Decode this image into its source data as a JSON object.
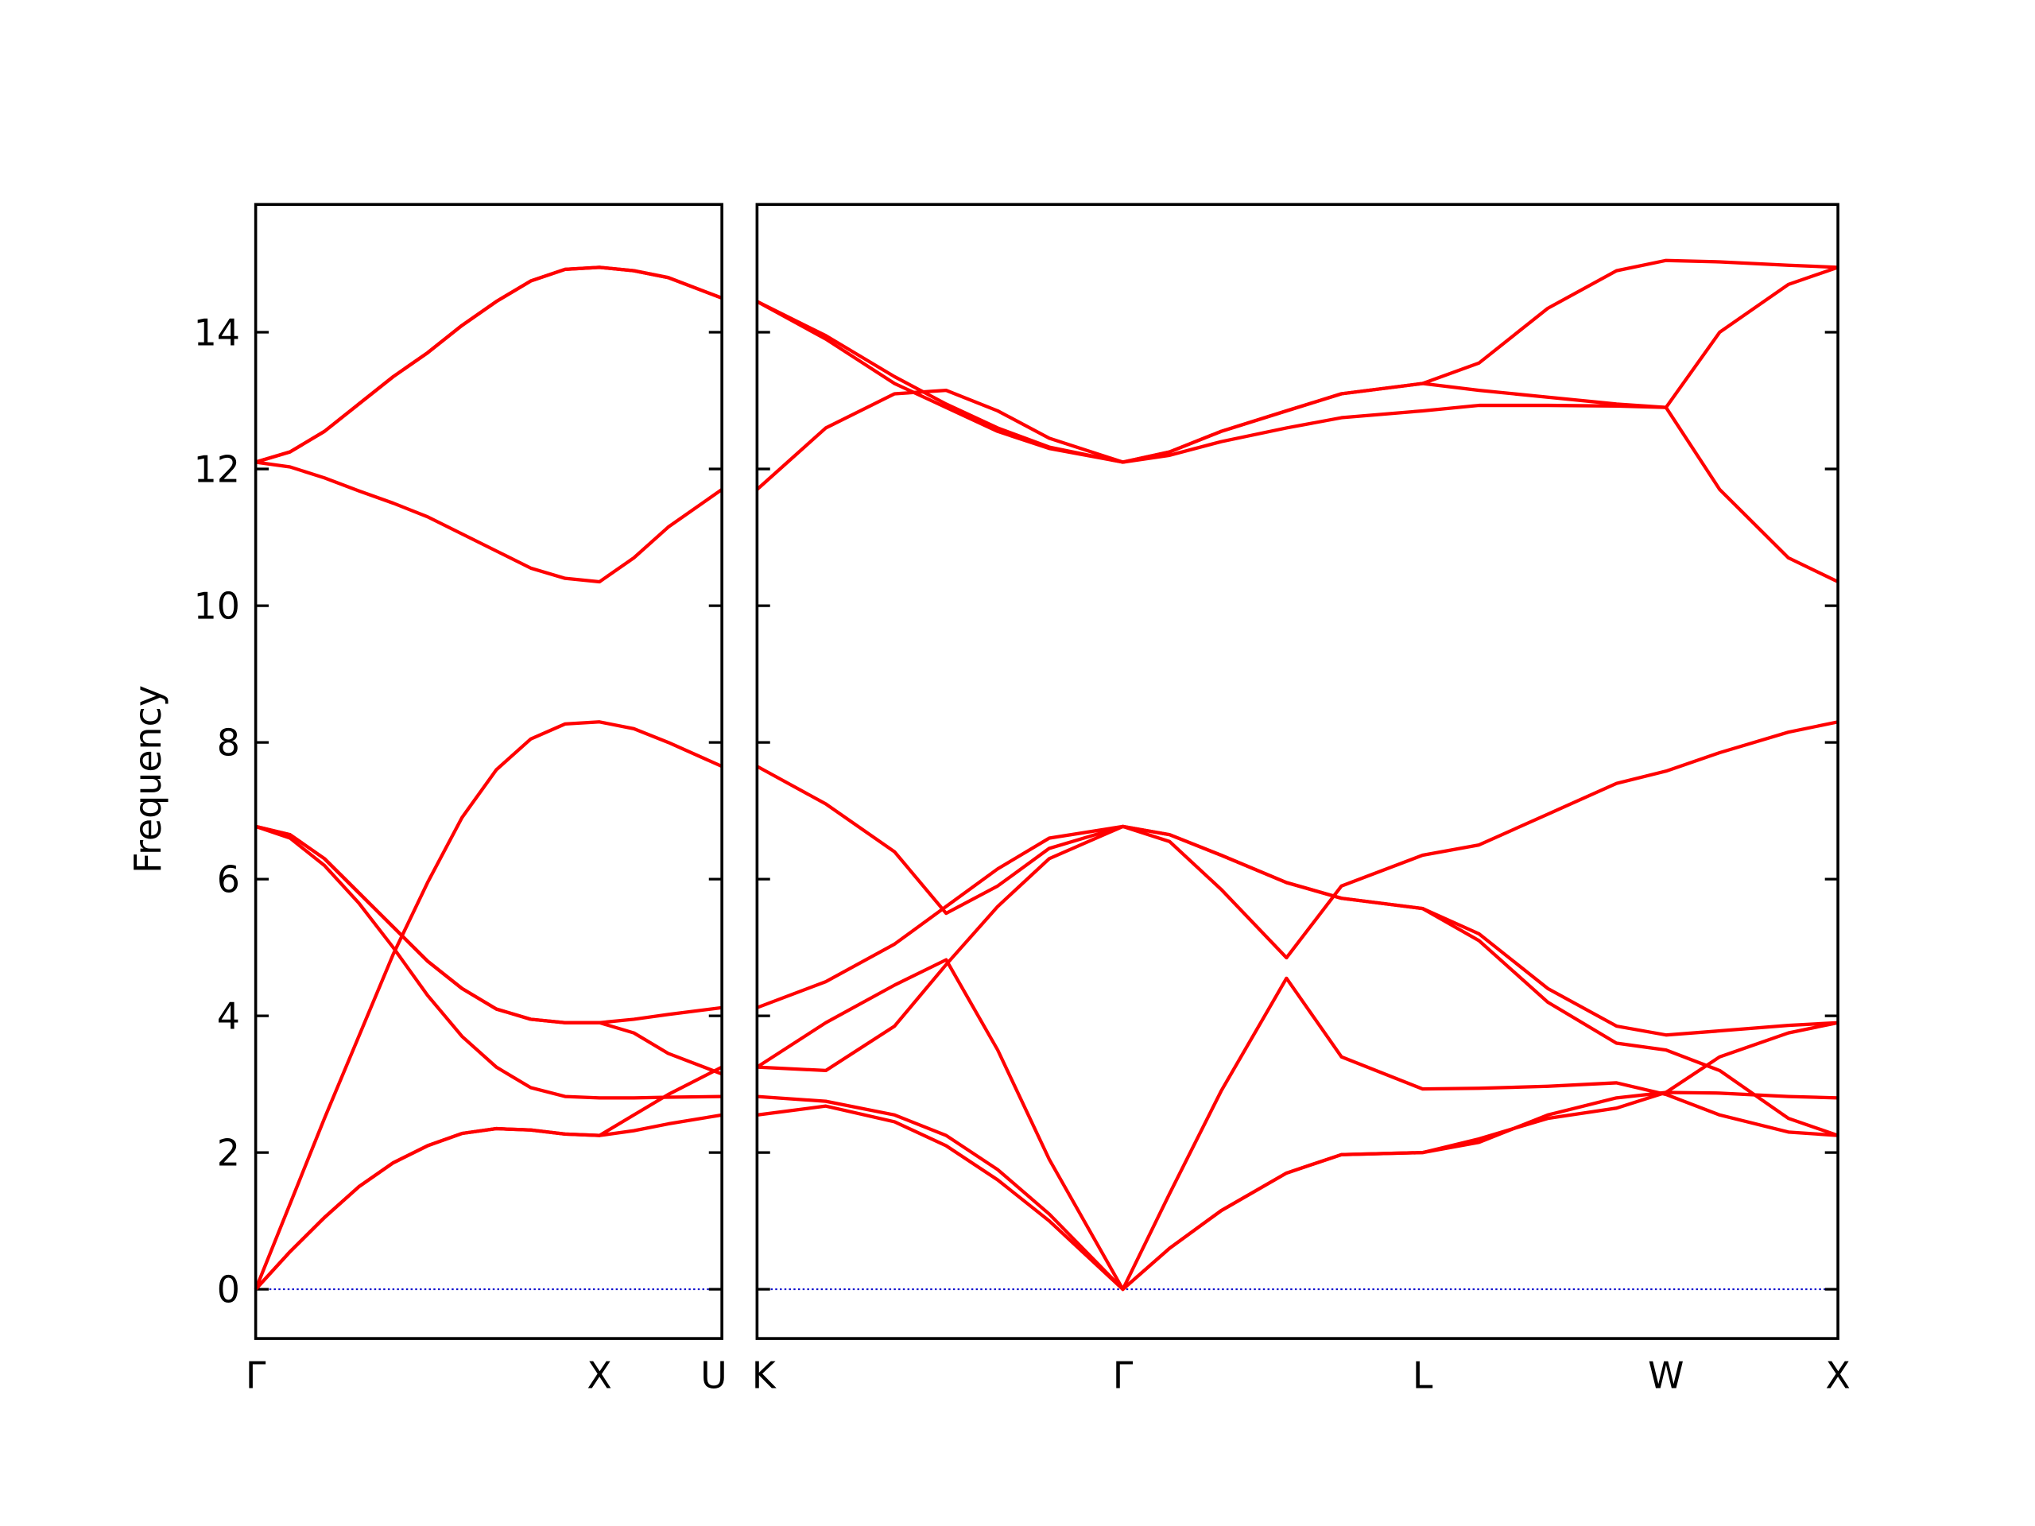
{
  "chart_data": [
    {
      "type": "line",
      "ylabel": "Frequency",
      "x": [
        0,
        0.1,
        0.2,
        0.3,
        0.4,
        0.5,
        0.6,
        0.7,
        0.8,
        0.9,
        1.0,
        1.1,
        1.2,
        1.356
      ],
      "xlim": [
        0,
        1.356
      ],
      "xticks": [
        {
          "value": 0,
          "label": "Γ"
        },
        {
          "value": 1.0,
          "label": "X"
        },
        {
          "value": 1.356,
          "label": "U"
        }
      ],
      "ylim": [
        -0.72,
        15.87
      ],
      "yticks": [
        0,
        2,
        4,
        6,
        8,
        10,
        12,
        14
      ],
      "hline": {
        "value": 0,
        "color": "#0000cc"
      },
      "series": [
        {
          "color": "#ff0000",
          "values": [
            0,
            0.55,
            1.05,
            1.5,
            1.85,
            2.1,
            2.28,
            2.35,
            2.33,
            2.27,
            2.25,
            2.32,
            2.42,
            2.55
          ]
        },
        {
          "color": "#ff0000",
          "values": [
            0,
            0.55,
            1.05,
            1.5,
            1.85,
            2.1,
            2.28,
            2.35,
            2.33,
            2.27,
            2.25,
            2.55,
            2.85,
            3.25
          ]
        },
        {
          "color": "#ff0000",
          "values": [
            0,
            1.25,
            2.5,
            3.7,
            4.9,
            5.95,
            6.9,
            7.6,
            8.05,
            8.27,
            8.3,
            8.2,
            8.0,
            7.65
          ]
        },
        {
          "color": "#ff0000",
          "values": [
            6.77,
            6.65,
            6.3,
            5.8,
            5.3,
            4.8,
            4.4,
            4.1,
            3.95,
            3.9,
            3.9,
            3.95,
            4.02,
            4.12
          ]
        },
        {
          "color": "#ff0000",
          "values": [
            6.77,
            6.65,
            6.3,
            5.8,
            5.3,
            4.8,
            4.4,
            4.1,
            3.95,
            3.9,
            3.9,
            3.75,
            3.45,
            3.15
          ]
        },
        {
          "color": "#ff0000",
          "values": [
            6.77,
            6.6,
            6.2,
            5.65,
            5.0,
            4.3,
            3.7,
            3.25,
            2.95,
            2.82,
            2.8,
            2.8,
            2.81,
            2.82
          ]
        },
        {
          "color": "#ff0000",
          "values": [
            12.1,
            12.03,
            11.87,
            11.68,
            11.5,
            11.3,
            11.05,
            10.8,
            10.55,
            10.4,
            10.35,
            10.7,
            11.15,
            11.7
          ]
        },
        {
          "color": "#ff0000",
          "values": [
            12.1,
            12.25,
            12.55,
            12.95,
            13.35,
            13.7,
            14.1,
            14.45,
            14.75,
            14.92,
            14.95,
            14.9,
            14.8,
            14.5
          ]
        },
        {
          "color": "#ff0000",
          "values": [
            12.1,
            12.25,
            12.55,
            12.95,
            13.35,
            13.7,
            14.1,
            14.45,
            14.75,
            14.92,
            14.95,
            14.9,
            14.8,
            14.5
          ]
        }
      ]
    },
    {
      "type": "line",
      "x": [
        0,
        0.2,
        0.4,
        0.55,
        0.7,
        0.85,
        1.064,
        1.2,
        1.35,
        1.54,
        1.7,
        1.936,
        2.1,
        2.3,
        2.5,
        2.644,
        2.8,
        3.0,
        3.144
      ],
      "xlim": [
        0,
        3.144
      ],
      "xticks": [
        {
          "value": 0,
          "label": "K"
        },
        {
          "value": 1.064,
          "label": "Γ"
        },
        {
          "value": 1.936,
          "label": "L"
        },
        {
          "value": 2.644,
          "label": "W"
        },
        {
          "value": 3.144,
          "label": "X"
        }
      ],
      "ylim": [
        -0.72,
        15.87
      ],
      "hline": {
        "value": 0,
        "color": "#0000cc"
      },
      "series": [
        {
          "color": "#ff0000",
          "values": [
            2.55,
            2.68,
            2.45,
            2.1,
            1.6,
            1.0,
            0,
            0.6,
            1.15,
            1.7,
            1.97,
            2.0,
            2.2,
            2.5,
            2.65,
            2.88,
            3.4,
            3.75,
            3.9
          ]
        },
        {
          "color": "#ff0000",
          "values": [
            2.82,
            2.75,
            2.55,
            2.25,
            1.75,
            1.1,
            0,
            0.6,
            1.15,
            1.7,
            1.97,
            2.0,
            2.15,
            2.55,
            2.8,
            2.88,
            2.87,
            2.82,
            2.8
          ]
        },
        {
          "color": "#ff0000",
          "values": [
            3.25,
            3.9,
            4.45,
            4.82,
            3.5,
            1.9,
            0,
            1.4,
            2.9,
            4.55,
            3.4,
            2.93,
            2.94,
            2.97,
            3.02,
            2.85,
            2.55,
            2.3,
            2.25
          ]
        },
        {
          "color": "#ff0000",
          "values": [
            3.25,
            3.2,
            3.85,
            4.75,
            5.6,
            6.3,
            6.77,
            6.65,
            6.35,
            5.95,
            5.72,
            5.57,
            5.1,
            4.2,
            3.6,
            3.5,
            3.2,
            2.5,
            2.25
          ]
        },
        {
          "color": "#ff0000",
          "values": [
            4.12,
            4.5,
            5.05,
            5.6,
            6.15,
            6.6,
            6.77,
            6.65,
            6.35,
            5.95,
            5.72,
            5.57,
            5.2,
            4.4,
            3.85,
            3.72,
            3.78,
            3.86,
            3.9
          ]
        },
        {
          "color": "#ff0000",
          "values": [
            7.65,
            7.1,
            6.4,
            5.5,
            5.9,
            6.45,
            6.77,
            6.55,
            5.85,
            4.85,
            5.9,
            6.35,
            6.5,
            6.95,
            7.4,
            7.58,
            7.85,
            8.15,
            8.3
          ]
        },
        {
          "color": "#ff0000",
          "values": [
            11.7,
            12.6,
            13.1,
            13.15,
            12.85,
            12.45,
            12.1,
            12.2,
            12.4,
            12.6,
            12.75,
            12.85,
            12.93,
            12.93,
            12.92,
            12.9,
            11.7,
            10.7,
            10.35
          ]
        },
        {
          "color": "#ff0000",
          "values": [
            14.45,
            13.9,
            13.25,
            12.9,
            12.55,
            12.3,
            12.1,
            12.25,
            12.55,
            12.85,
            13.1,
            13.25,
            13.15,
            13.05,
            12.95,
            12.9,
            14.0,
            14.7,
            14.95
          ]
        },
        {
          "color": "#ff0000",
          "values": [
            14.45,
            13.95,
            13.35,
            12.95,
            12.6,
            12.32,
            12.1,
            12.25,
            12.55,
            12.85,
            13.1,
            13.25,
            13.55,
            14.35,
            14.9,
            15.05,
            15.03,
            14.98,
            14.95
          ]
        }
      ]
    }
  ]
}
